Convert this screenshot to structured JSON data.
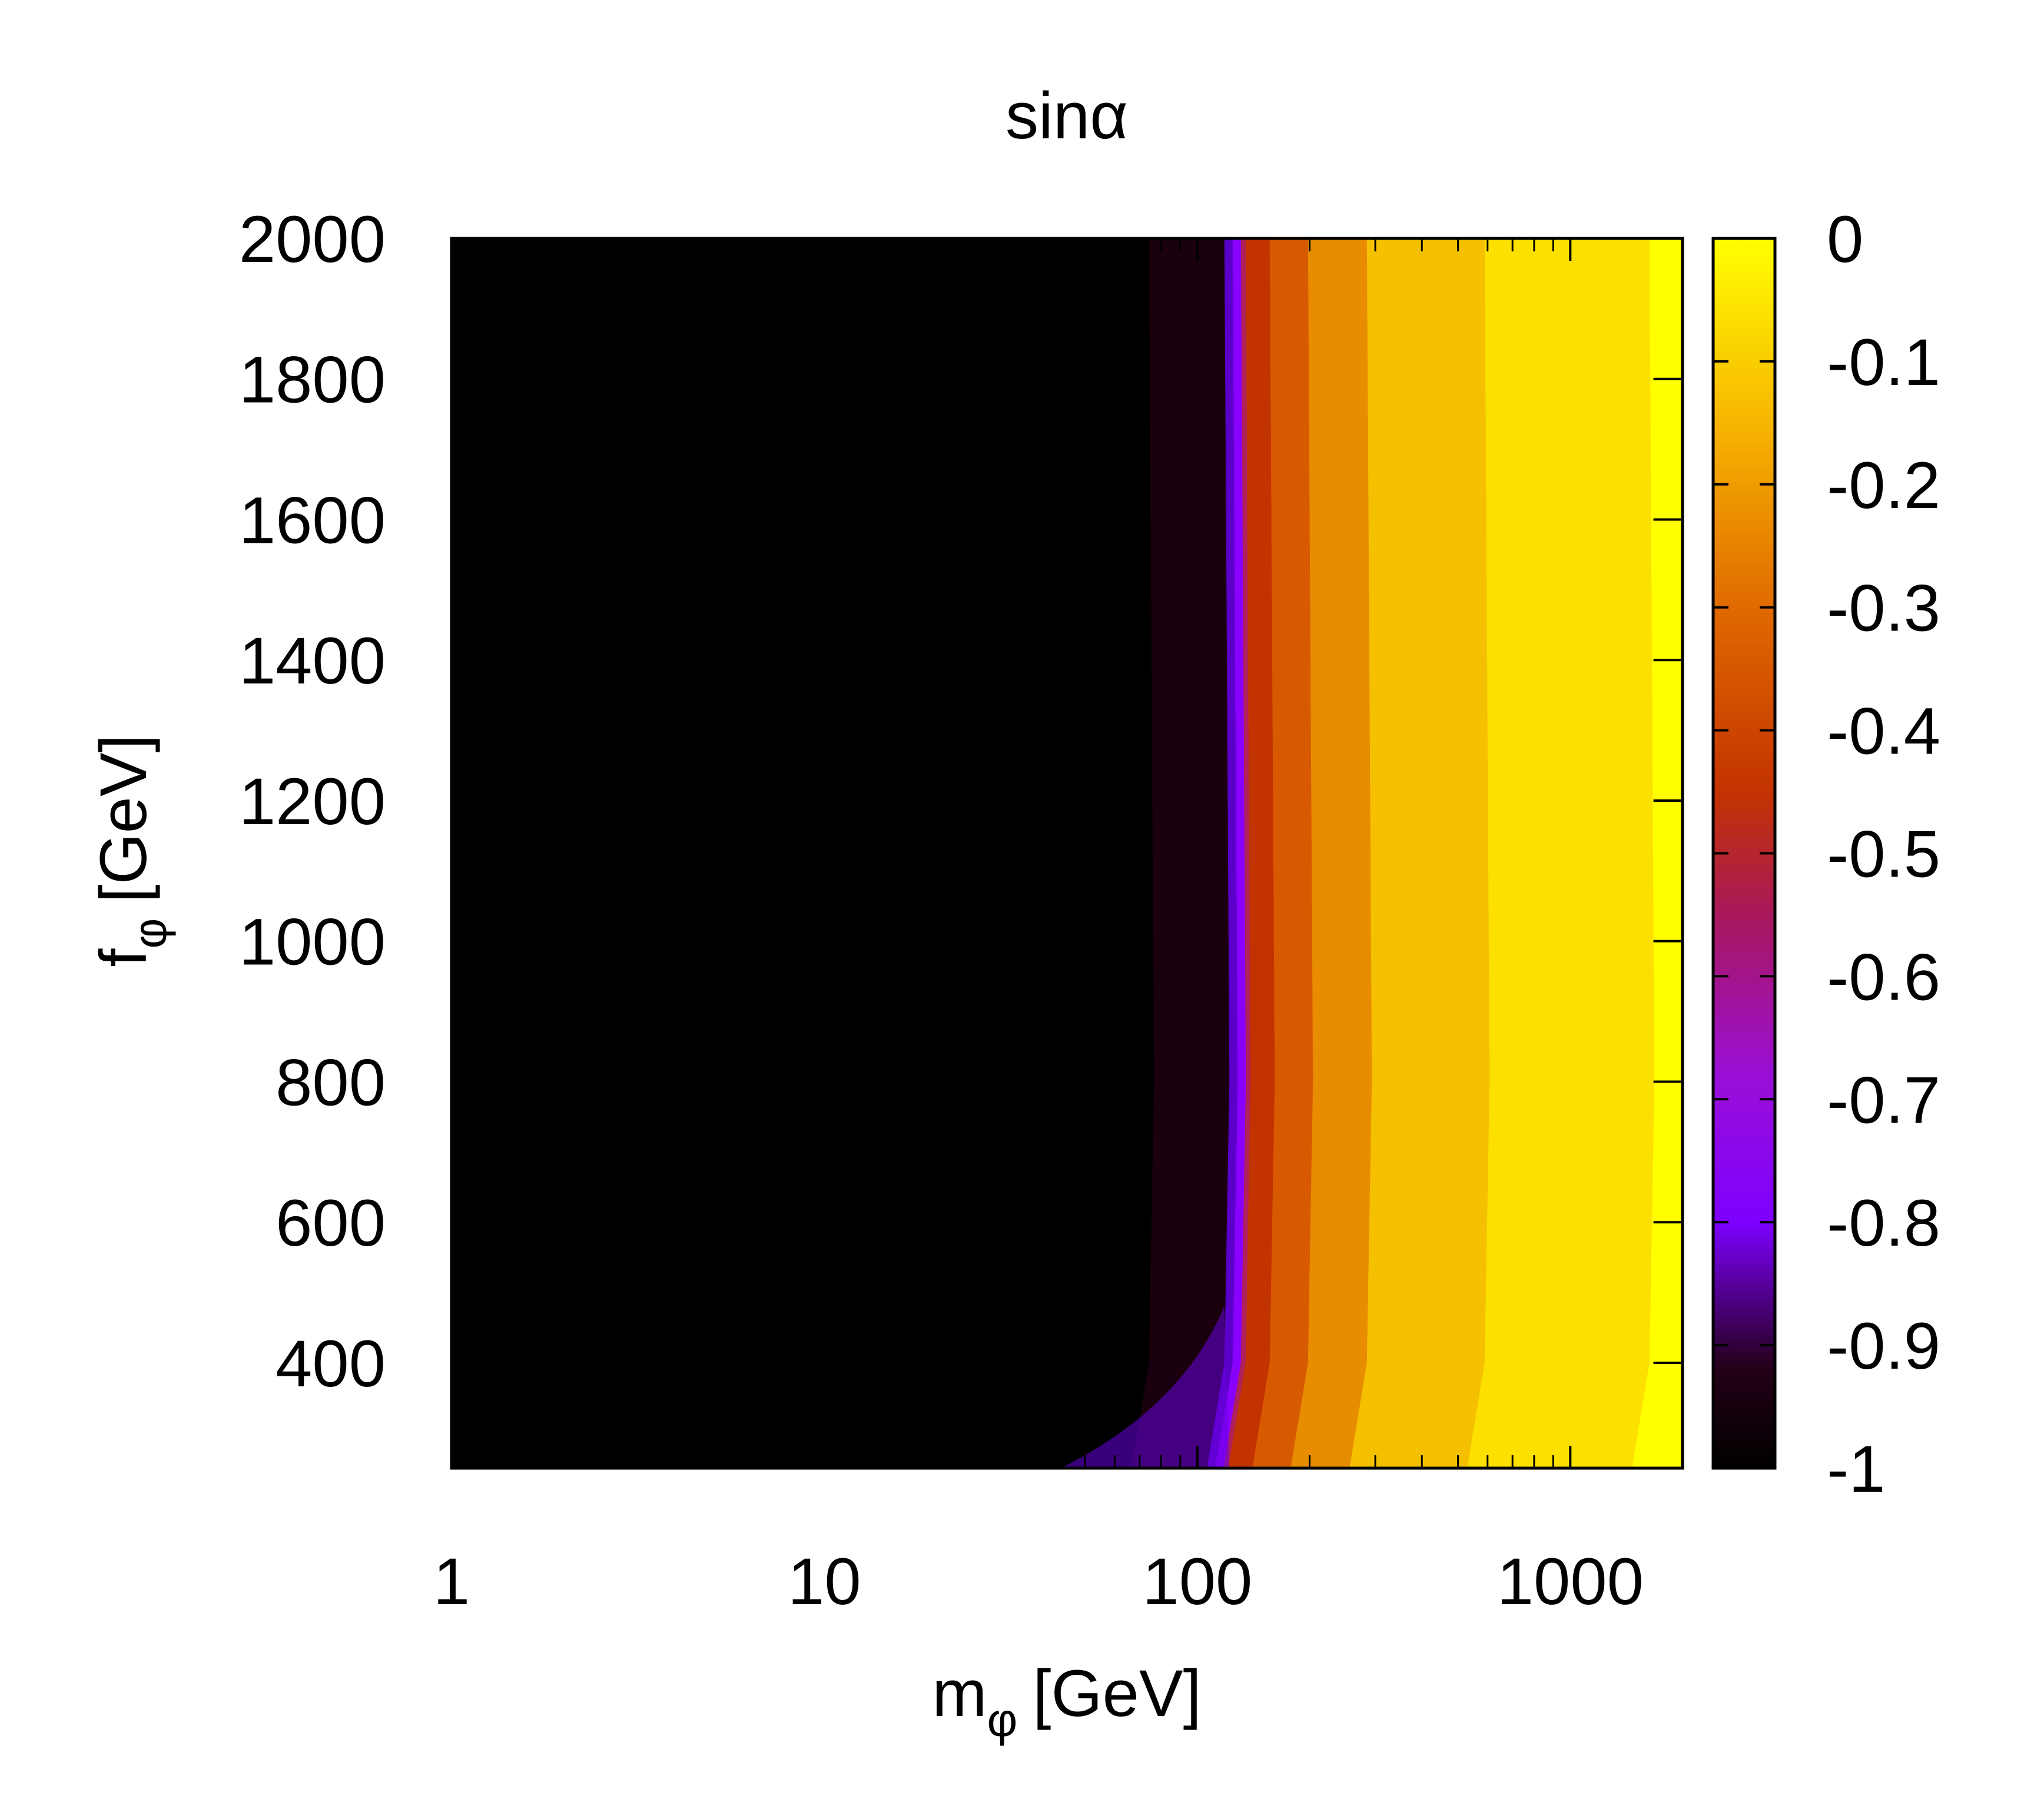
{
  "chart_data": {
    "type": "heatmap",
    "title": "sinα",
    "xlabel": {
      "main": "m",
      "sub": "φ",
      "unit": "[GeV]"
    },
    "ylabel": {
      "main": "f",
      "sub": "φ",
      "unit": "[GeV]"
    },
    "x_scale": "log",
    "xlim": [
      1,
      2000
    ],
    "ylim": [
      250,
      2000
    ],
    "x_ticks": [
      "1",
      "10",
      "100",
      "1000"
    ],
    "x_tick_values": [
      1,
      10,
      100,
      1000
    ],
    "y_ticks": [
      "2000",
      "1800",
      "1600",
      "1400",
      "1200",
      "1000",
      "800",
      "600",
      "400"
    ],
    "y_tick_values": [
      2000,
      1800,
      1600,
      1400,
      1200,
      1000,
      800,
      600,
      400
    ],
    "colorbar": {
      "range": [
        -1,
        0
      ],
      "ticks": [
        "0",
        "-0.1",
        "-0.2",
        "-0.3",
        "-0.4",
        "-0.5",
        "-0.6",
        "-0.7",
        "-0.8",
        "-0.9",
        "-1"
      ],
      "tick_values": [
        0,
        -0.1,
        -0.2,
        -0.3,
        -0.4,
        -0.5,
        -0.6,
        -0.7,
        -0.8,
        -0.9,
        -1
      ],
      "colormap": "black-purple-red-orange-yellow",
      "colors": [
        "#000000",
        "#7d00ff",
        "#c33300",
        "#ffff00"
      ]
    },
    "transition": {
      "description_values": "sinα ≈ -1 below m_φ ≈ 125 GeV, rising sharply to ≈ 0 above",
      "transition_m_phi": [
        {
          "f_phi": 250,
          "m_phi": 115
        },
        {
          "f_phi": 400,
          "m_phi": 128
        },
        {
          "f_phi": 800,
          "m_phi": 132
        },
        {
          "f_phi": 2000,
          "m_phi": 128
        }
      ]
    }
  }
}
